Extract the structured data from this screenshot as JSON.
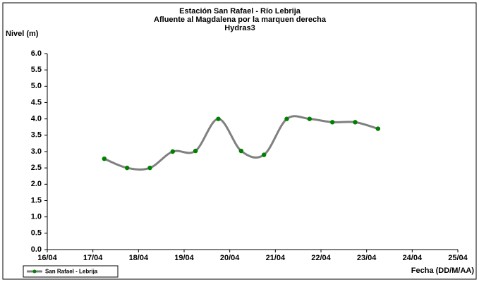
{
  "chart_data": {
    "type": "line",
    "title": [
      "Estación San Rafael - Río Lebrija",
      "Afluente al Magdalena por la marquen derecha",
      "Hydras3"
    ],
    "y_label": "Nivel (m)",
    "x_label": "Fecha (DD/M/AA)",
    "x": [
      17.25,
      17.75,
      18.25,
      18.75,
      19.25,
      19.75,
      20.25,
      20.75,
      21.25,
      21.75,
      22.25,
      22.75,
      23.25
    ],
    "series": [
      {
        "name": "San Rafael - Lebrija",
        "color": "#808080",
        "marker_color": "#008000",
        "values": [
          2.78,
          2.5,
          2.5,
          3.0,
          3.02,
          4.0,
          3.02,
          2.9,
          4.0,
          4.0,
          3.9,
          3.9,
          3.7
        ]
      }
    ],
    "xlim": [
      16,
      25
    ],
    "xticks": [
      {
        "value": 16,
        "label": "16/04"
      },
      {
        "value": 17,
        "label": "17/04"
      },
      {
        "value": 18,
        "label": "18/04"
      },
      {
        "value": 19,
        "label": "19/04"
      },
      {
        "value": 20,
        "label": "20/04"
      },
      {
        "value": 21,
        "label": "21/04"
      },
      {
        "value": 22,
        "label": "22/04"
      },
      {
        "value": 23,
        "label": "23/04"
      },
      {
        "value": 24,
        "label": "24/04"
      },
      {
        "value": 25,
        "label": "25/04"
      }
    ],
    "ylim": [
      0,
      6
    ],
    "yticks": [
      {
        "value": 0,
        "label": "0.0"
      },
      {
        "value": 0.5,
        "label": "0.5"
      },
      {
        "value": 1,
        "label": "1.0"
      },
      {
        "value": 1.5,
        "label": "1.5"
      },
      {
        "value": 2,
        "label": "2.0"
      },
      {
        "value": 2.5,
        "label": "2.5"
      },
      {
        "value": 3,
        "label": "3.0"
      },
      {
        "value": 3.5,
        "label": "3.5"
      },
      {
        "value": 4,
        "label": "4.0"
      },
      {
        "value": 4.5,
        "label": "4.5"
      },
      {
        "value": 5,
        "label": "5.0"
      },
      {
        "value": 5.5,
        "label": "5.5"
      },
      {
        "value": 6,
        "label": "6.0"
      }
    ],
    "grid": false,
    "smooth": true,
    "legend": "bottom-left"
  }
}
